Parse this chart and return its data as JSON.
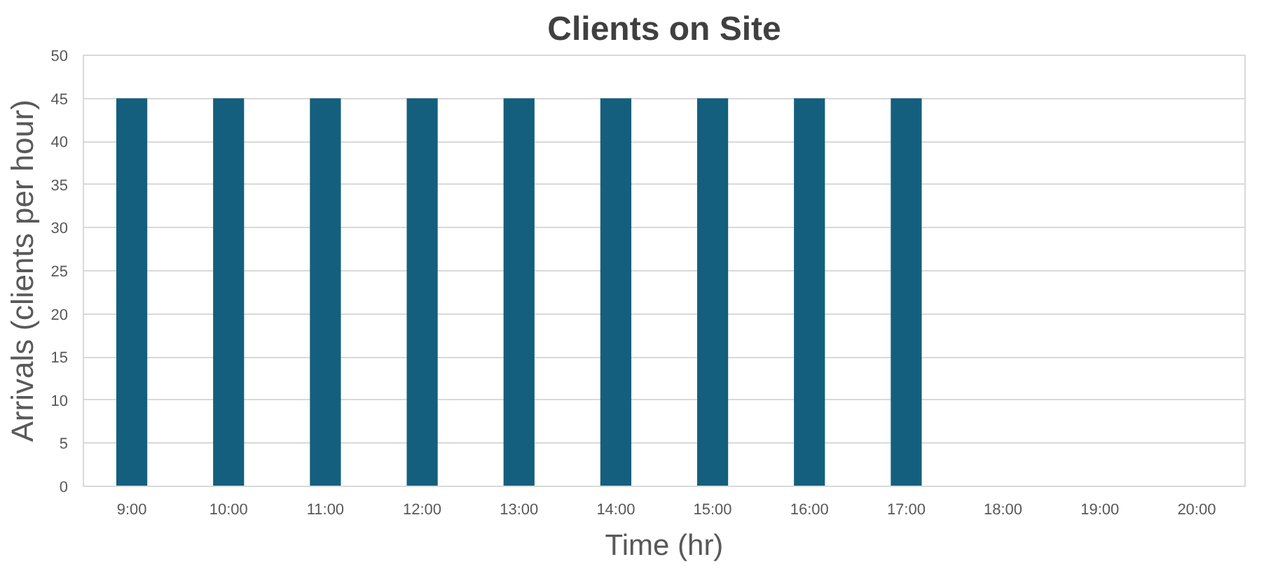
{
  "chart_data": {
    "type": "bar",
    "title": "Clients on Site",
    "xlabel": "Time (hr)",
    "ylabel": "Arrivals (clients per hour)",
    "categories": [
      "9:00",
      "10:00",
      "11:00",
      "12:00",
      "13:00",
      "14:00",
      "15:00",
      "16:00",
      "17:00",
      "18:00",
      "19:00",
      "20:00"
    ],
    "values": [
      45,
      45,
      45,
      45,
      45,
      45,
      45,
      45,
      45,
      0,
      0,
      0
    ],
    "color": "#145f7e",
    "ylim": [
      0,
      50
    ],
    "yticks": [
      0,
      5,
      10,
      15,
      20,
      25,
      30,
      35,
      40,
      45,
      50
    ],
    "grid": "y"
  }
}
